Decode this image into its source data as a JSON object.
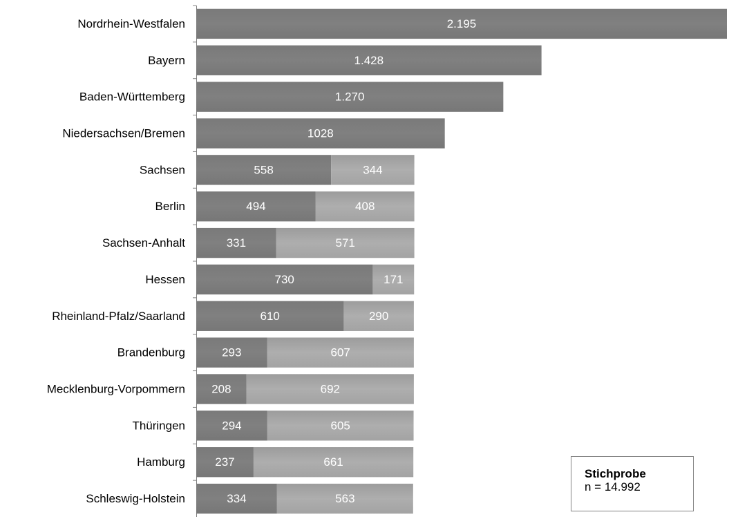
{
  "chart_data": {
    "type": "bar",
    "orientation": "horizontal",
    "stacked": true,
    "categories": [
      "Nordrhein-Westfalen",
      "Bayern",
      "Baden-Württemberg",
      "Niedersachsen/Bremen",
      "Sachsen",
      "Berlin",
      "Sachsen-Anhalt",
      "Hessen",
      "Rheinland-Pfalz/Saarland",
      "Brandenburg",
      "Mecklenburg-Vorpommern",
      "Thüringen",
      "Hamburg",
      "Schleswig-Holstein"
    ],
    "series": [
      {
        "values": [
          2195,
          1428,
          1270,
          1028,
          558,
          494,
          331,
          730,
          610,
          293,
          208,
          294,
          237,
          334
        ],
        "labels": [
          "2.195",
          "1.428",
          "1.270",
          "1028",
          "558",
          "494",
          "331",
          "730",
          "610",
          "293",
          "208",
          "294",
          "237",
          "334"
        ],
        "color": "#7f7f7f"
      },
      {
        "values": [
          0,
          0,
          0,
          0,
          344,
          408,
          571,
          171,
          290,
          607,
          692,
          605,
          661,
          563
        ],
        "labels": [
          "",
          "",
          "",
          "",
          "344",
          "408",
          "571",
          "171",
          "290",
          "607",
          "692",
          "605",
          "661",
          "563"
        ],
        "color": "#a6a6a6"
      }
    ],
    "xlim": [
      0,
      2195
    ],
    "grid": false,
    "legend": "none"
  },
  "sample_box": {
    "title": "Stichprobe",
    "text": "n = 14.992"
  }
}
